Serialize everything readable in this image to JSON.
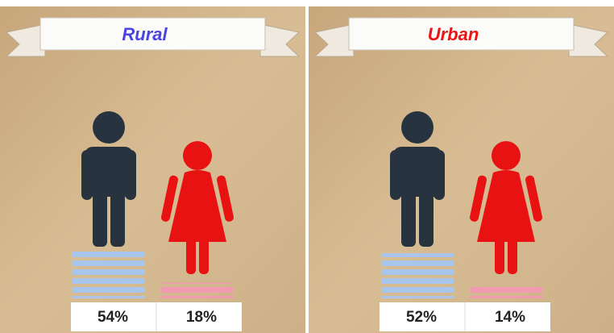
{
  "chart_data": [
    {
      "type": "pictogram",
      "title": "Rural",
      "title_color": "#4a45e0",
      "categories": [
        null,
        null
      ],
      "values": [
        54,
        18
      ],
      "value_labels": [
        "54%",
        "18%"
      ],
      "colors": [
        "#27343f",
        "#e81212"
      ],
      "stack_colors": [
        "#a8c6ec",
        "#f19bb0"
      ]
    },
    {
      "type": "pictogram",
      "title": "Urban",
      "title_color": "#ea1515",
      "categories": [
        null,
        null
      ],
      "values": [
        52,
        14
      ],
      "value_labels": [
        "52%",
        "14%"
      ],
      "colors": [
        "#27343f",
        "#e81212"
      ],
      "stack_colors": [
        "#a8c6ec",
        "#f19bb0"
      ]
    }
  ]
}
